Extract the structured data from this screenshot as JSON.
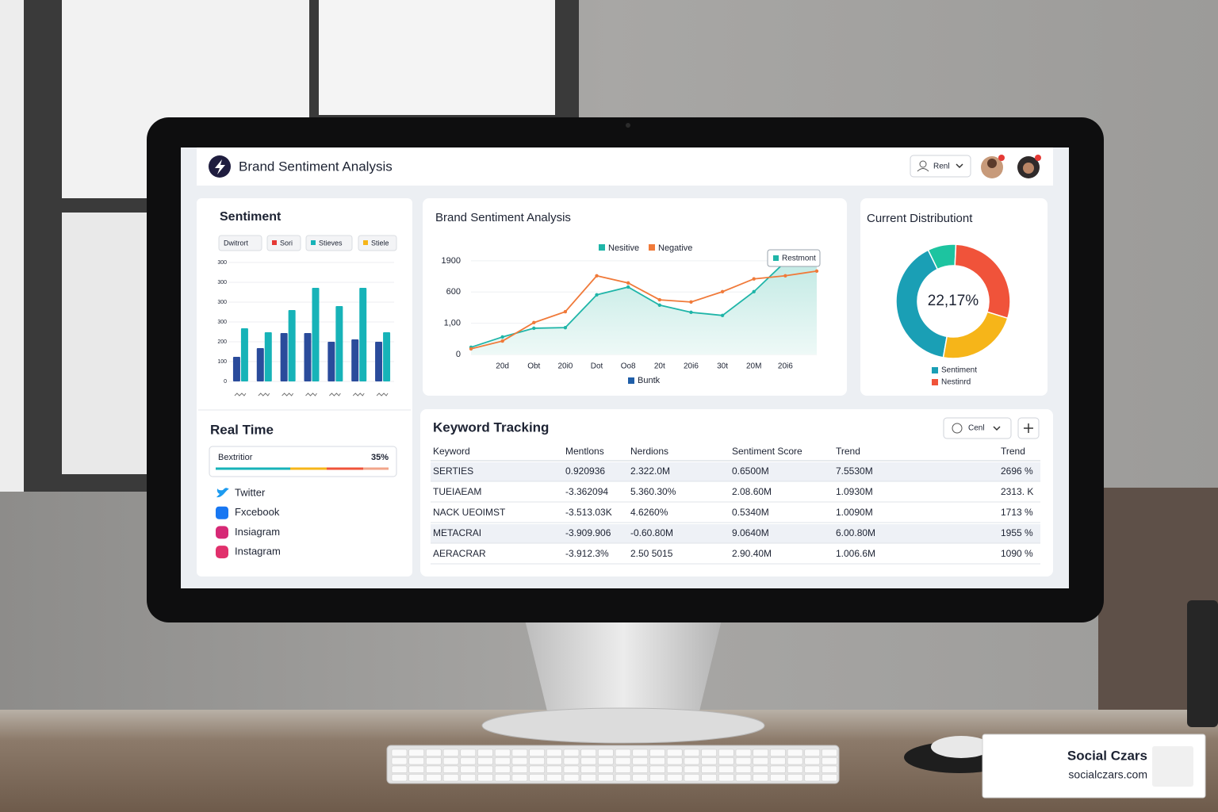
{
  "header": {
    "title": "Brand Sentiment Analysis",
    "user_button": "Renl"
  },
  "sentiment_panel": {
    "title": "Sentiment",
    "tabs": [
      "Dwitrort",
      "Sori",
      "Stieves",
      "Stiele"
    ]
  },
  "real_time": {
    "title": "Real Time",
    "progress_label": "Bextritior",
    "progress_value": "35%",
    "sources": [
      "Twitter",
      "Fxcebook",
      "Insiagram",
      "Instagram"
    ]
  },
  "keyword_tracking": {
    "title": "Keyword Tracking",
    "filter": "Cenl",
    "columns": [
      "Keyword",
      "Mentlons",
      "Nerdions",
      "Sentiment Score",
      "Trend",
      "Trend"
    ],
    "rows": [
      [
        "SERTIES",
        "0.920936",
        "2.322.0M",
        "0.6500M",
        "7.5530M",
        "2696 %"
      ],
      [
        "TUEIAEAM",
        "-3.362094",
        "5.360.30%",
        "2.08.60M",
        "1.0930M",
        "2313. K"
      ],
      [
        "NACK UEOIMST",
        "-3.513.03K",
        "4.6260%",
        "0.5340M",
        "1.0090M",
        "1713 %"
      ],
      [
        "METACRAI",
        "-3.909.906",
        "-0.60.80M",
        "9.0640M",
        "6.00.80M",
        "1955 %"
      ],
      [
        "AERACRAR",
        "-3.912.3%",
        "2.50 5015",
        "2.90.40M",
        "1.006.6M",
        "1090 %"
      ]
    ]
  },
  "chart_data": [
    {
      "type": "bar",
      "categories": [
        null,
        null,
        null,
        null,
        null,
        null,
        null
      ],
      "series": [
        {
          "color": "#2a4b9b",
          "values": [
            124,
            168,
            244,
            244,
            200,
            212,
            200
          ]
        },
        {
          "color": "#17b3b8",
          "values": [
            268,
            248,
            360,
            472,
            380,
            472,
            248
          ]
        }
      ],
      "ylim": [
        0,
        600
      ],
      "yticks": [
        0,
        100,
        200,
        300,
        {
          "value": 400,
          "label": "300"
        },
        {
          "value": 500,
          "label": "300"
        },
        {
          "value": 600,
          "label": "300"
        }
      ],
      "grid": true
    },
    {
      "type": "line",
      "title": "Brand Sentiment Analysis",
      "categories": [
        null,
        "20d",
        "Obt",
        "20i0",
        "Dot",
        "Oo8",
        "20t",
        "20i6",
        "30t",
        "20M",
        "20i6",
        null
      ],
      "series": [
        {
          "name": "Nesitive",
          "color": "#1fb5a8",
          "values": [
            23,
            56,
            84,
            86,
            191,
            216,
            158,
            135,
            125,
            201,
            297,
            318
          ]
        },
        {
          "name": "Negative",
          "color": "#f07a3a",
          "values": [
            18,
            43,
            102,
            137,
            252,
            229,
            175,
            168,
            201,
            242,
            252,
            267
          ]
        }
      ],
      "ylim": [
        0,
        320
      ],
      "yticks": [
        0,
        {
          "value": 100,
          "label": "1,00"
        },
        {
          "value": 200,
          "label": "600"
        },
        {
          "value": 300,
          "label": "1900"
        }
      ],
      "annotation": "Restmont",
      "bottom_legend": "Buntk",
      "grid": true
    },
    {
      "type": "pie",
      "title": "Current Distributiont",
      "center_label": "22,17%",
      "categories": [
        "Sentiment",
        null,
        "Nestinrd",
        null
      ],
      "values": [
        40,
        8,
        29,
        23
      ],
      "colors": [
        "#1a9fb5",
        "#1dc4a0",
        "#f0533a",
        "#f6b519"
      ]
    }
  ],
  "watermark": {
    "name": "Social Czars",
    "url": "socialczars.com"
  }
}
